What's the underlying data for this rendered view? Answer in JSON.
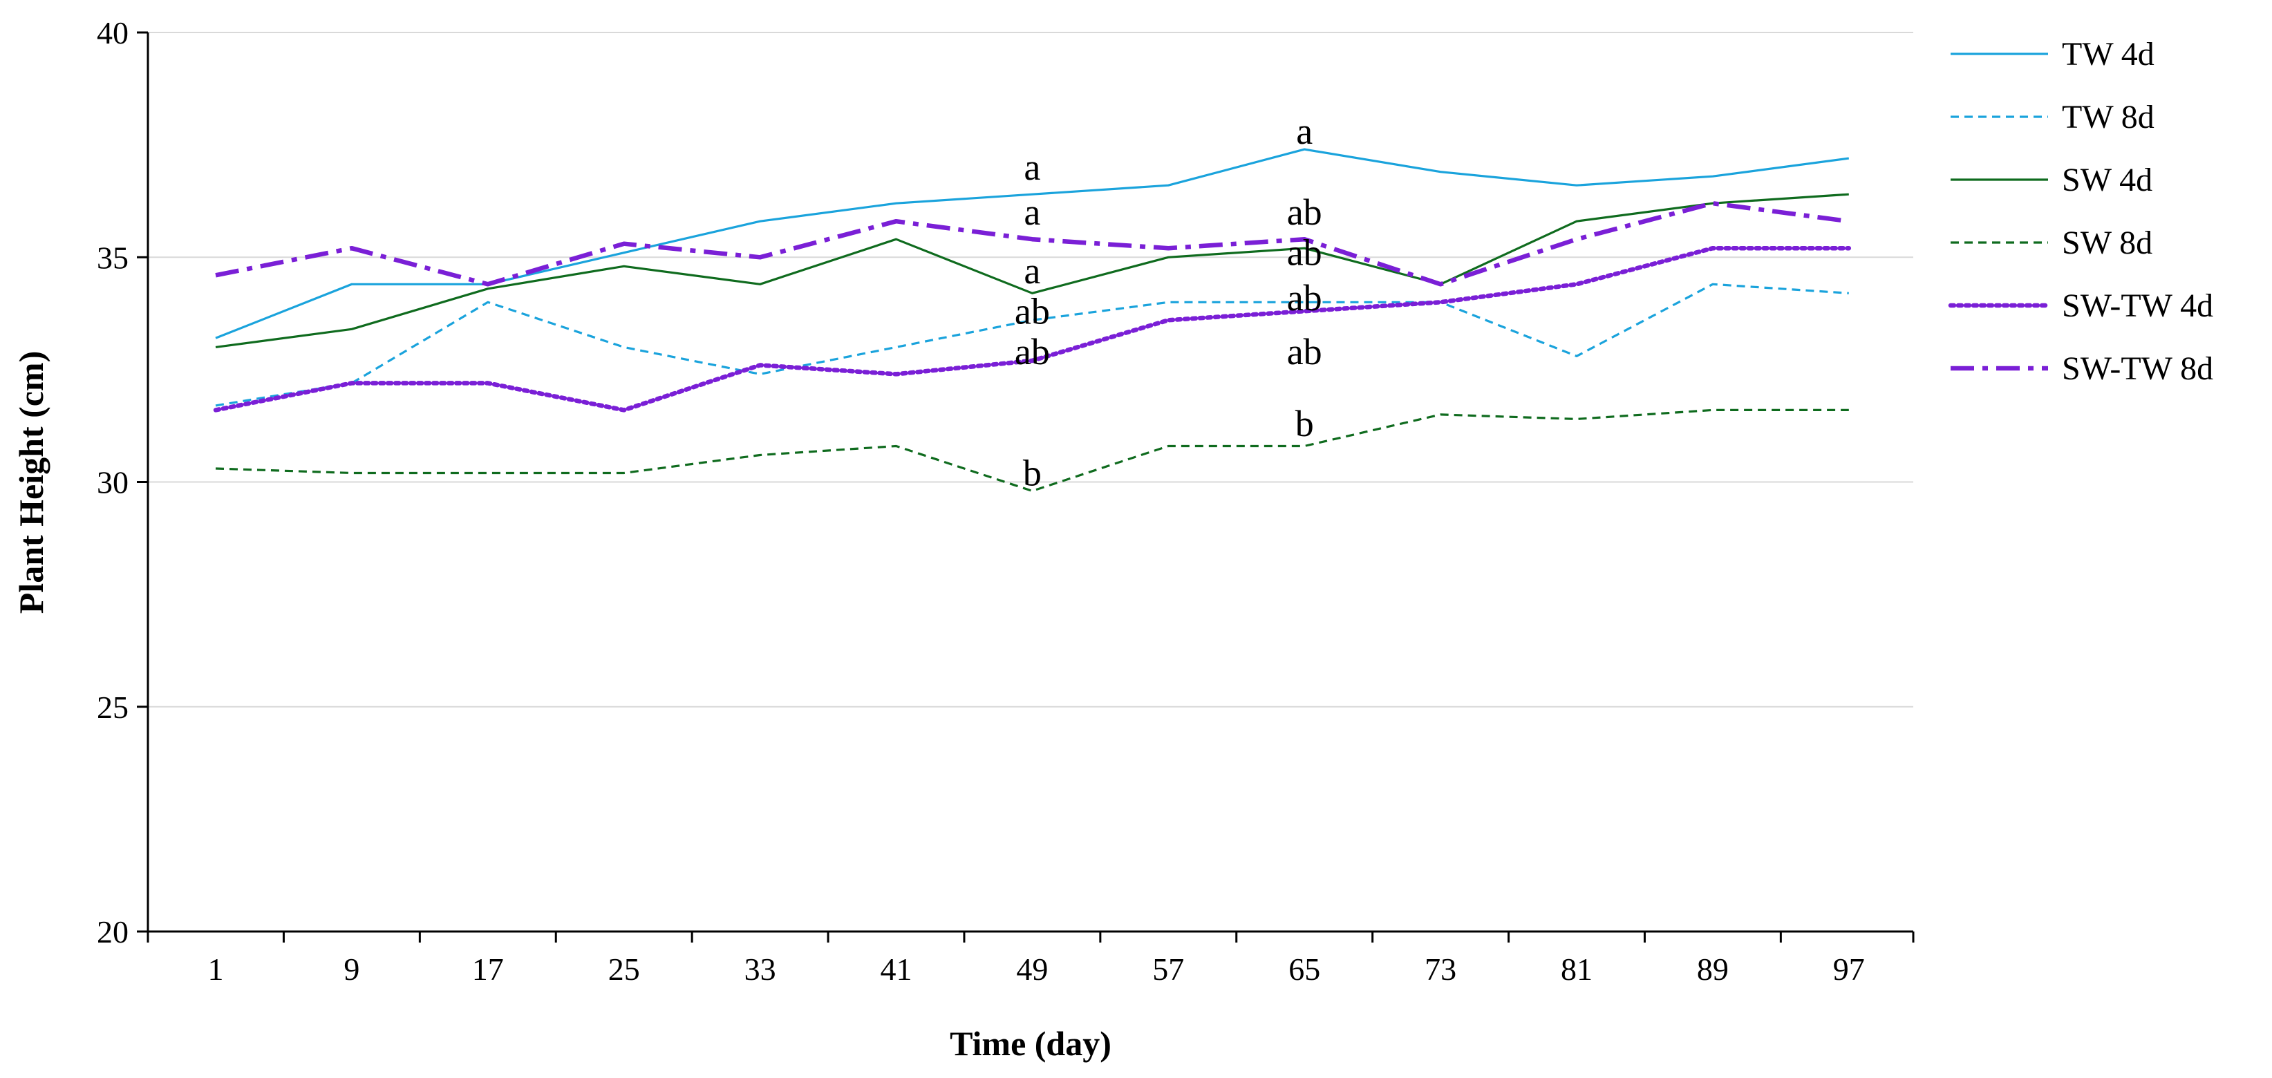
{
  "chart_data": {
    "type": "line",
    "title": "",
    "xlabel": "Time (day)",
    "ylabel": "Plant Height (cm)",
    "ylim": [
      20,
      40
    ],
    "yticks": [
      20,
      25,
      30,
      35,
      40
    ],
    "grid": true,
    "legend_position": "right",
    "x": [
      "1",
      "9",
      "17",
      "25",
      "33",
      "41",
      "49",
      "57",
      "65",
      "73",
      "81",
      "89",
      "97"
    ],
    "series": [
      {
        "name": "TW 4d",
        "color": "#1aa3dc",
        "style": "solid",
        "values": [
          33.2,
          34.4,
          34.4,
          35.1,
          35.8,
          36.2,
          36.4,
          36.6,
          37.4,
          36.9,
          36.6,
          36.8,
          37.2
        ]
      },
      {
        "name": "TW 8d",
        "color": "#1aa3dc",
        "style": "dashed",
        "values": [
          31.7,
          32.2,
          34.0,
          33.0,
          32.4,
          33.0,
          33.6,
          34.0,
          34.0,
          34.0,
          32.8,
          34.4,
          34.2
        ]
      },
      {
        "name": "SW 4d",
        "color": "#0f6b1e",
        "style": "solid",
        "values": [
          33.0,
          33.4,
          34.3,
          34.8,
          34.4,
          35.4,
          34.2,
          35.0,
          35.2,
          34.4,
          35.8,
          36.2,
          36.4
        ]
      },
      {
        "name": "SW 8d",
        "color": "#0f6b1e",
        "style": "dashed",
        "values": [
          30.3,
          30.2,
          30.2,
          30.2,
          30.6,
          30.8,
          29.8,
          30.8,
          30.8,
          31.5,
          31.4,
          31.6,
          31.6
        ]
      },
      {
        "name": "SW-TW 4d",
        "color": "#7a1fd6",
        "style": "dotted",
        "values": [
          31.6,
          32.2,
          32.2,
          31.6,
          32.6,
          32.4,
          32.7,
          33.6,
          33.8,
          34.0,
          34.4,
          35.2,
          35.2
        ]
      },
      {
        "name": "SW-TW 8d",
        "color": "#7a1fd6",
        "style": "dashdot",
        "values": [
          34.6,
          35.2,
          34.4,
          35.3,
          35.0,
          35.8,
          35.4,
          35.2,
          35.4,
          34.4,
          35.4,
          36.2,
          35.8
        ]
      }
    ],
    "annotations": [
      {
        "text": "a",
        "x": "49",
        "y": 37.0
      },
      {
        "text": "a",
        "x": "49",
        "y": 36.0
      },
      {
        "text": "a",
        "x": "49",
        "y": 34.7
      },
      {
        "text": "ab",
        "x": "49",
        "y": 33.8
      },
      {
        "text": "ab",
        "x": "49",
        "y": 32.9
      },
      {
        "text": "b",
        "x": "49",
        "y": 30.2
      },
      {
        "text": "a",
        "x": "65",
        "y": 37.8
      },
      {
        "text": "ab",
        "x": "65",
        "y": 36.0
      },
      {
        "text": "ab",
        "x": "65",
        "y": 35.1
      },
      {
        "text": "ab",
        "x": "65",
        "y": 34.1
      },
      {
        "text": "ab",
        "x": "65",
        "y": 32.9
      },
      {
        "text": "b",
        "x": "65",
        "y": 31.3
      }
    ]
  }
}
